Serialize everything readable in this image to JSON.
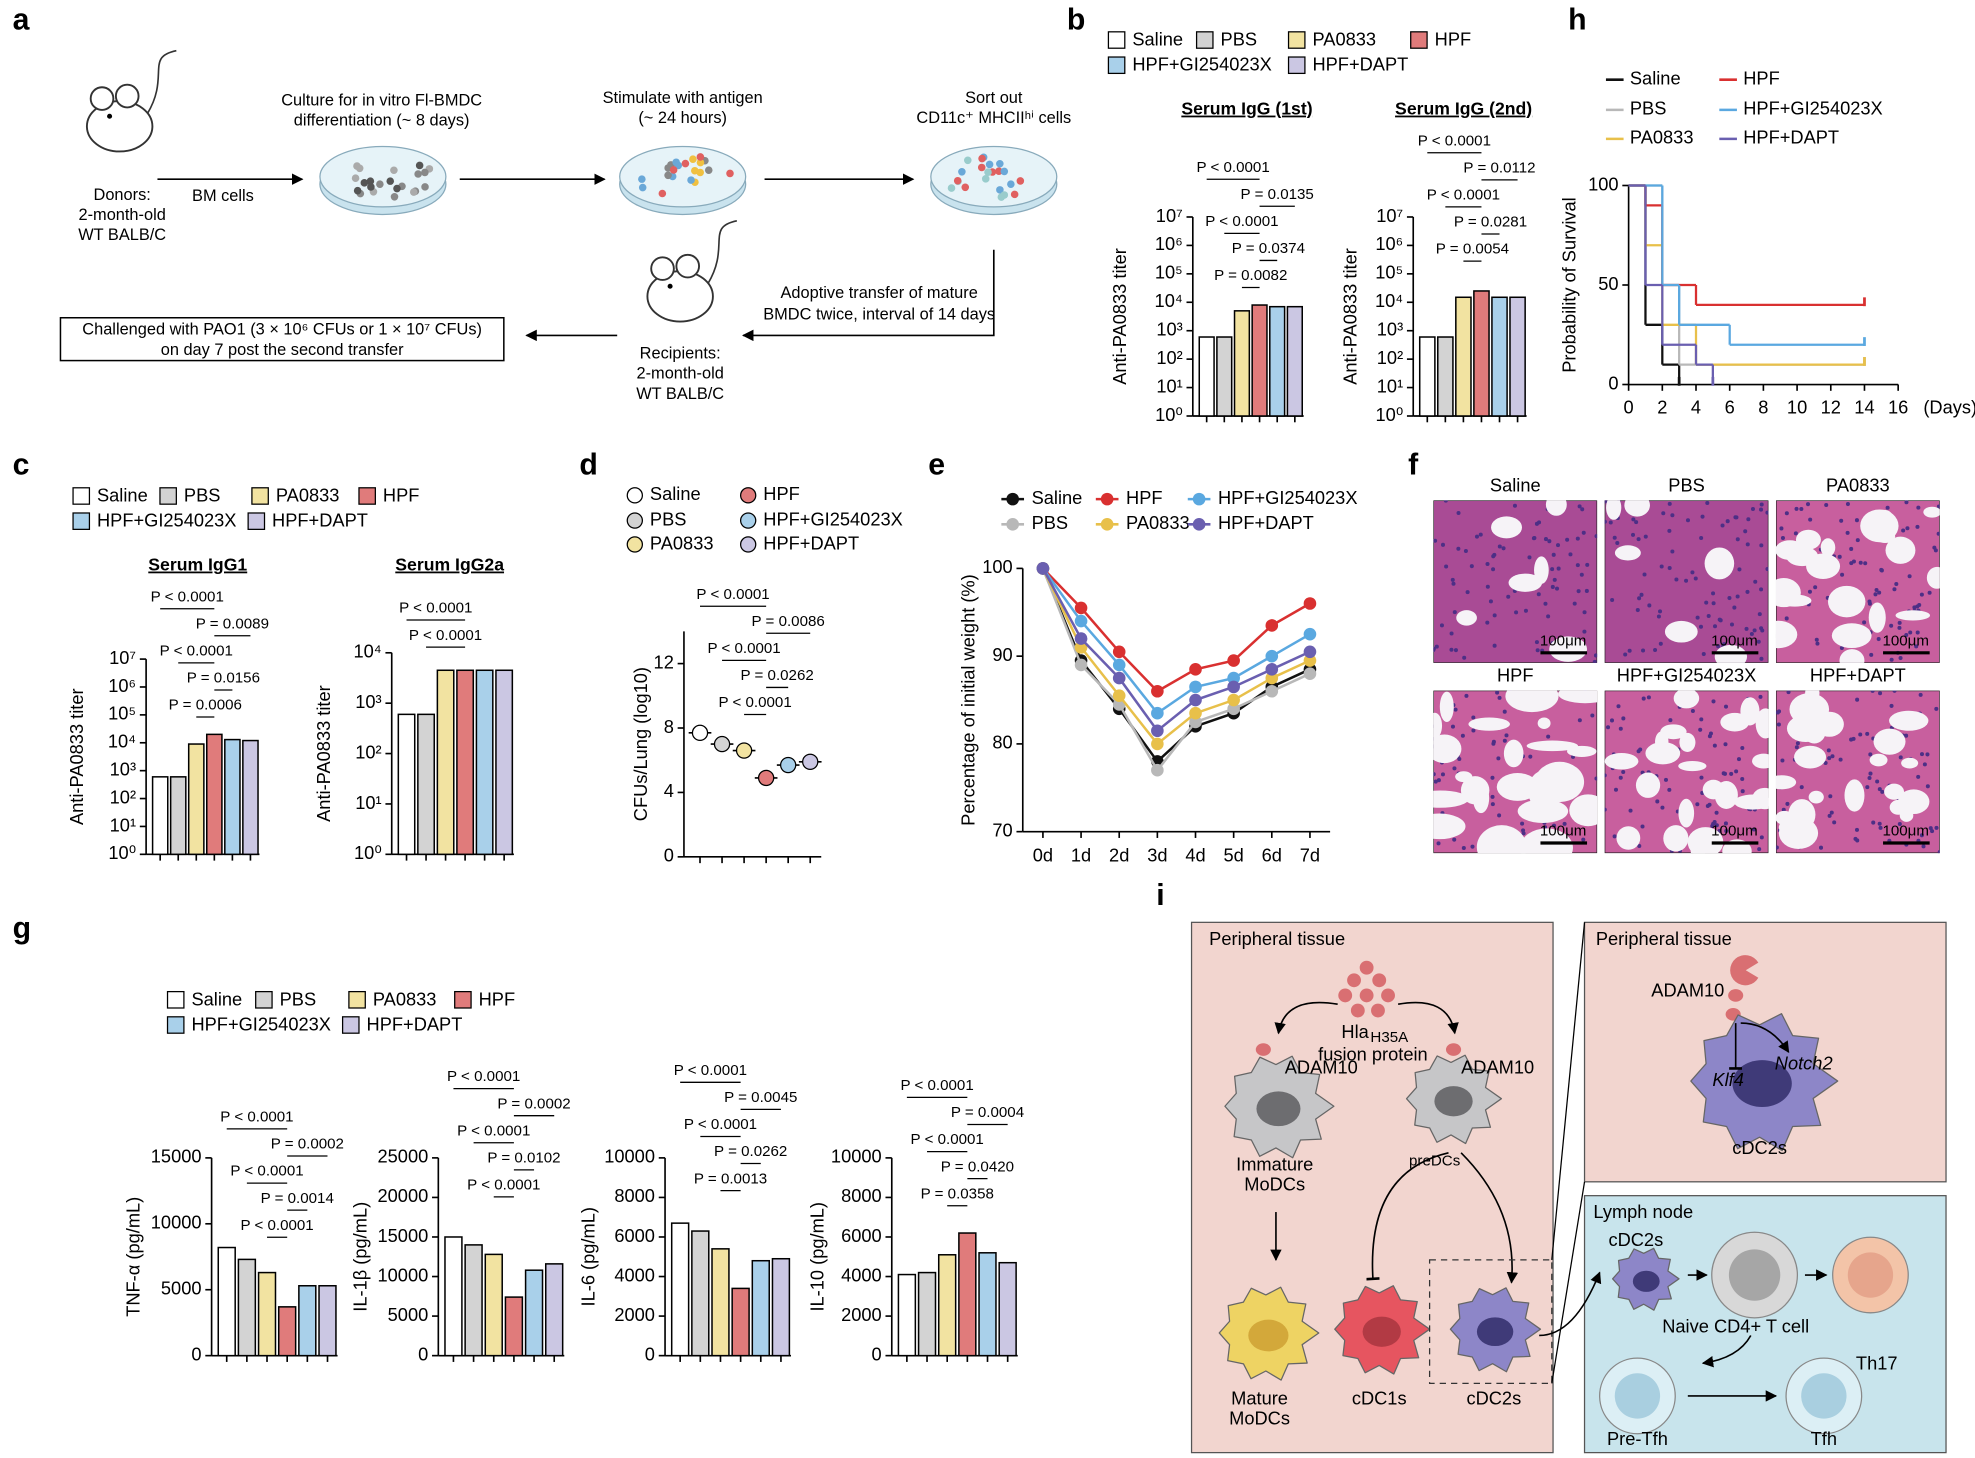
{
  "panel_labels": [
    "a",
    "b",
    "c",
    "d",
    "e",
    "f",
    "g",
    "h",
    "i"
  ],
  "panel_a": {
    "donors": [
      "Donors:",
      "2-month-old",
      "WT BALB/C"
    ],
    "bm_cells": "BM cells",
    "culture": [
      "Culture for in vitro Fl-BMDC",
      "differentiation (~ 8 days)"
    ],
    "stimulate": [
      "Stimulate with antigen",
      "(~ 24 hours)"
    ],
    "sort": [
      "Sort out",
      "CD11c⁺ MHCIIʰⁱ cells"
    ],
    "adoptive": [
      "Adoptive transfer of mature",
      "BMDC twice, interval of 14 days"
    ],
    "recipients": [
      "Recipients:",
      "2-month-old",
      "WT BALB/C"
    ],
    "challenge": [
      "Challenged with PAO1 (3 × 10⁶ CFUs or 1 × 10⁷ CFUs)",
      "on day 7 post the second transfer"
    ]
  },
  "panel_f": {
    "labels": [
      "Saline",
      "PBS",
      "PA0833",
      "HPF",
      "HPF+GI254023X",
      "HPF+DAPT"
    ],
    "scale_bar": "100μm"
  },
  "panel_i": {
    "left": {
      "title": "Peripheral tissue",
      "hla": "Hla",
      "hla_sub": "H35A",
      "fusion": "fusion protein",
      "adam_left": "ADAM10",
      "adam_right": "ADAM10",
      "immature": [
        "Immature",
        "MoDCs"
      ],
      "predcs": "preDCs",
      "mature": [
        "Mature",
        "MoDCs"
      ],
      "cdc1": "cDC1s",
      "cdc2": "cDC2s"
    },
    "right_top": {
      "title": "Peripheral tissue",
      "adam": "ADAM10",
      "klf4": "Klf4",
      "notch2": "Notch2",
      "cdc2": "cDC2s"
    },
    "right_bottom": {
      "title": "Lymph node",
      "cdc2": "cDC2s",
      "naive": "Naive CD4+ T cell",
      "th17": "Th17",
      "pretfh": "Pre-Tfh",
      "tfh": "Tfh"
    }
  },
  "chart_data": [
    {
      "type": "bar",
      "title": "Serum IgG (1st)",
      "ylabel": "Anti-PA0833 titer",
      "log": true,
      "legend": [
        "Saline",
        "PBS",
        "PA0833",
        "HPF",
        "HPF+GI254023X",
        "HPF+DAPT"
      ],
      "colors": [
        "#ffffff",
        "#d3d3d3",
        "#f2e3a1",
        "#e07b7b",
        "#a9d0ea",
        "#cbc7e3"
      ],
      "values": [
        600,
        600,
        5000,
        8000,
        7000,
        7000
      ],
      "ylim": [
        1,
        10000000
      ],
      "yticks": [
        {
          "value": 1,
          "label": "10⁰"
        },
        {
          "value": 10,
          "label": "10¹"
        },
        {
          "value": 100,
          "label": "10²"
        },
        {
          "value": 1000,
          "label": "10³"
        },
        {
          "value": 10000,
          "label": "10⁴"
        },
        {
          "value": 100000,
          "label": "10⁵"
        },
        {
          "value": 1000000,
          "label": "10⁶"
        },
        {
          "value": 10000000,
          "label": "10⁷"
        }
      ],
      "annotations": [
        "P < 0.0001",
        "P = 0.0135",
        "P < 0.0001",
        "P = 0.0374",
        "P = 0.0082"
      ]
    },
    {
      "type": "bar",
      "title": "Serum IgG (2nd)",
      "ylabel": "Anti-PA0833 titer",
      "log": true,
      "colors": [
        "#ffffff",
        "#d3d3d3",
        "#f2e3a1",
        "#e07b7b",
        "#a9d0ea",
        "#cbc7e3"
      ],
      "values": [
        600,
        600,
        15000,
        25000,
        15000,
        15000
      ],
      "ylim": [
        1,
        10000000
      ],
      "yticks": [
        {
          "value": 1,
          "label": "10⁰"
        },
        {
          "value": 10,
          "label": "10¹"
        },
        {
          "value": 100,
          "label": "10²"
        },
        {
          "value": 1000,
          "label": "10³"
        },
        {
          "value": 10000,
          "label": "10⁴"
        },
        {
          "value": 100000,
          "label": "10⁵"
        },
        {
          "value": 1000000,
          "label": "10⁶"
        },
        {
          "value": 10000000,
          "label": "10⁷"
        }
      ],
      "annotations": [
        "P < 0.0001",
        "P = 0.0112",
        "P < 0.0001",
        "P = 0.0281",
        "P = 0.0054"
      ]
    },
    {
      "type": "bar",
      "title": "Serum IgG1",
      "ylabel": "Anti-PA0833 titer",
      "log": true,
      "legend": [
        "Saline",
        "PBS",
        "PA0833",
        "HPF",
        "HPF+GI254023X",
        "HPF+DAPT"
      ],
      "colors": [
        "#ffffff",
        "#d3d3d3",
        "#f2e3a1",
        "#e07b7b",
        "#a9d0ea",
        "#cbc7e3"
      ],
      "values": [
        600,
        600,
        9000,
        20000,
        13000,
        12000
      ],
      "ylim": [
        1,
        10000000
      ],
      "yticks": [
        {
          "value": 1,
          "label": "10⁰"
        },
        {
          "value": 10,
          "label": "10¹"
        },
        {
          "value": 100,
          "label": "10²"
        },
        {
          "value": 1000,
          "label": "10³"
        },
        {
          "value": 10000,
          "label": "10⁴"
        },
        {
          "value": 100000,
          "label": "10⁵"
        },
        {
          "value": 1000000,
          "label": "10⁶"
        },
        {
          "value": 10000000,
          "label": "10⁷"
        }
      ],
      "annotations": [
        "P < 0.0001",
        "P = 0.0089",
        "P < 0.0001",
        "P = 0.0156",
        "P = 0.0006"
      ]
    },
    {
      "type": "bar",
      "title": "Serum IgG2a",
      "ylabel": "Anti-PA0833 titer",
      "log": true,
      "colors": [
        "#ffffff",
        "#d3d3d3",
        "#f2e3a1",
        "#e07b7b",
        "#a9d0ea",
        "#cbc7e3"
      ],
      "values": [
        600,
        600,
        4500,
        4500,
        4500,
        4500
      ],
      "ylim": [
        1,
        10000
      ],
      "yticks": [
        {
          "value": 1,
          "label": "10⁰"
        },
        {
          "value": 10,
          "label": "10¹"
        },
        {
          "value": 100,
          "label": "10²"
        },
        {
          "value": 1000,
          "label": "10³"
        },
        {
          "value": 10000,
          "label": "10⁴"
        }
      ],
      "annotations": [
        "P < 0.0001",
        "P < 0.0001"
      ]
    },
    {
      "type": "dot",
      "ylabel": "CFUs/Lung (log10)",
      "legend": [
        "Saline",
        "PBS",
        "PA0833",
        "HPF",
        "HPF+GI254023X",
        "HPF+DAPT"
      ],
      "colors": [
        "#ffffff",
        "#d3d3d3",
        "#f2e3a1",
        "#e07b7b",
        "#a9d0ea",
        "#cbc7e3"
      ],
      "values": [
        7.7,
        7.0,
        6.6,
        4.9,
        5.7,
        5.9
      ],
      "ylim": [
        0,
        14
      ],
      "yticks": [
        0,
        4,
        8,
        12
      ],
      "annotations": [
        "P < 0.0001",
        "P = 0.0086",
        "P < 0.0001",
        "P = 0.0262",
        "P < 0.0001"
      ]
    },
    {
      "type": "line",
      "ylabel": "Percentage of initial weight (%)",
      "categories": [
        "0d",
        "1d",
        "2d",
        "3d",
        "4d",
        "5d",
        "6d",
        "7d"
      ],
      "ylim": [
        70,
        100
      ],
      "yticks": [
        70,
        80,
        90,
        100
      ],
      "series": [
        {
          "name": "Saline",
          "color": "#111111",
          "values": [
            100,
            89.5,
            84,
            78,
            82,
            83.5,
            86.5,
            88.5
          ]
        },
        {
          "name": "PBS",
          "color": "#b8b8b8",
          "values": [
            100,
            89,
            84.5,
            77,
            82.5,
            84,
            86,
            88
          ]
        },
        {
          "name": "PA0833",
          "color": "#e8c04a",
          "values": [
            100,
            91,
            85.5,
            80,
            83.5,
            85,
            87.5,
            89.5
          ]
        },
        {
          "name": "HPF",
          "color": "#d93030",
          "values": [
            100,
            95.5,
            90.5,
            86,
            88.5,
            89.5,
            93.5,
            96
          ]
        },
        {
          "name": "HPF+GI254023X",
          "color": "#5aa8e0",
          "values": [
            100,
            94,
            89,
            83.5,
            86.5,
            87.5,
            90,
            92.5
          ]
        },
        {
          "name": "HPF+DAPT",
          "color": "#6a5fb0",
          "values": [
            100,
            92,
            87.5,
            81.5,
            85,
            86.5,
            88.5,
            90.5
          ]
        }
      ]
    },
    {
      "type": "step",
      "ylabel": "Probability of Survival",
      "xlabel": "(Days)",
      "xlim": [
        0,
        16
      ],
      "xticks": [
        0,
        2,
        4,
        6,
        8,
        10,
        12,
        14,
        16
      ],
      "ylim": [
        0,
        100
      ],
      "yticks": [
        0,
        50,
        100
      ],
      "series": [
        {
          "name": "Saline",
          "color": "#111111",
          "x": [
            0,
            1,
            2,
            3
          ],
          "values": [
            100,
            30,
            10,
            0
          ]
        },
        {
          "name": "PBS",
          "color": "#b8b8b8",
          "x": [
            0,
            2,
            3,
            14
          ],
          "values": [
            100,
            50,
            10,
            10
          ]
        },
        {
          "name": "PA0833",
          "color": "#e8c04a",
          "x": [
            0,
            1,
            2,
            4,
            14
          ],
          "values": [
            100,
            70,
            30,
            10,
            10
          ]
        },
        {
          "name": "HPF",
          "color": "#d93030",
          "x": [
            0,
            1,
            2,
            4,
            14
          ],
          "values": [
            100,
            90,
            50,
            40,
            40
          ]
        },
        {
          "name": "HPF+GI254023X",
          "color": "#5aa8e0",
          "x": [
            0,
            2,
            3,
            6,
            14
          ],
          "values": [
            100,
            50,
            30,
            20,
            20
          ]
        },
        {
          "name": "HPF+DAPT",
          "color": "#6a5fb0",
          "x": [
            0,
            1,
            2,
            4,
            5
          ],
          "values": [
            100,
            50,
            20,
            10,
            0
          ]
        }
      ]
    },
    {
      "type": "bar",
      "ylabel": "TNF-α (pg/mL)",
      "legend": [
        "Saline",
        "PBS",
        "PA0833",
        "HPF",
        "HPF+GI254023X",
        "HPF+DAPT"
      ],
      "colors": [
        "#ffffff",
        "#d3d3d3",
        "#f2e3a1",
        "#e07b7b",
        "#a9d0ea",
        "#cbc7e3"
      ],
      "values": [
        8200,
        7300,
        6300,
        3700,
        5300,
        5300
      ],
      "ylim": [
        0,
        15000
      ],
      "yticks": [
        0,
        5000,
        10000,
        15000
      ],
      "annotations": [
        "P < 0.0001",
        "P = 0.0002",
        "P < 0.0001",
        "P = 0.0014",
        "P < 0.0001"
      ]
    },
    {
      "type": "bar",
      "ylabel": "IL-1β (pg/mL)",
      "colors": [
        "#ffffff",
        "#d3d3d3",
        "#f2e3a1",
        "#e07b7b",
        "#a9d0ea",
        "#cbc7e3"
      ],
      "values": [
        15000,
        14000,
        12800,
        7400,
        10800,
        11600
      ],
      "ylim": [
        0,
        25000
      ],
      "yticks": [
        0,
        5000,
        10000,
        15000,
        20000,
        25000
      ],
      "annotations": [
        "P < 0.0001",
        "P = 0.0002",
        "P < 0.0001",
        "P = 0.0102",
        "P < 0.0001"
      ]
    },
    {
      "type": "bar",
      "ylabel": "IL-6 (pg/mL)",
      "colors": [
        "#ffffff",
        "#d3d3d3",
        "#f2e3a1",
        "#e07b7b",
        "#a9d0ea",
        "#cbc7e3"
      ],
      "values": [
        6700,
        6300,
        5400,
        3400,
        4800,
        4900
      ],
      "ylim": [
        0,
        10000
      ],
      "yticks": [
        0,
        2000,
        4000,
        6000,
        8000,
        10000
      ],
      "annotations": [
        "P < 0.0001",
        "P = 0.0045",
        "P < 0.0001",
        "P = 0.0262",
        "P = 0.0013"
      ]
    },
    {
      "type": "bar",
      "ylabel": "IL-10 (pg/mL)",
      "colors": [
        "#ffffff",
        "#d3d3d3",
        "#f2e3a1",
        "#e07b7b",
        "#a9d0ea",
        "#cbc7e3"
      ],
      "values": [
        4100,
        4200,
        5100,
        6200,
        5200,
        4700
      ],
      "ylim": [
        0,
        10000
      ],
      "yticks": [
        0,
        2000,
        4000,
        6000,
        8000,
        10000
      ],
      "annotations": [
        "P < 0.0001",
        "P = 0.0004",
        "P < 0.0001",
        "P = 0.0420",
        "P = 0.0358"
      ]
    }
  ]
}
